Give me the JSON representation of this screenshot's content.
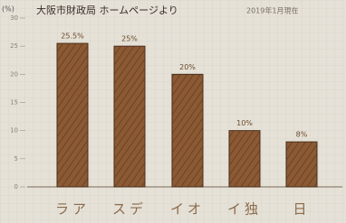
{
  "chart_data": {
    "type": "bar",
    "title": "大阪市財政局 ホームページより",
    "subtitle": "2019年1月現在",
    "y_label": "(%)",
    "categories": [
      "ラア",
      "スデ",
      "イオ",
      "イ独",
      "日"
    ],
    "values": [
      25.5,
      25,
      20,
      10,
      8
    ],
    "value_labels": [
      "25.5%",
      "25%",
      "20%",
      "10%",
      "8%"
    ],
    "color": "#8b5a34",
    "highlight_color": "#e0302c",
    "ylim": [
      0,
      30
    ],
    "yticks": [
      0,
      5,
      10,
      15,
      20,
      25,
      30
    ]
  }
}
